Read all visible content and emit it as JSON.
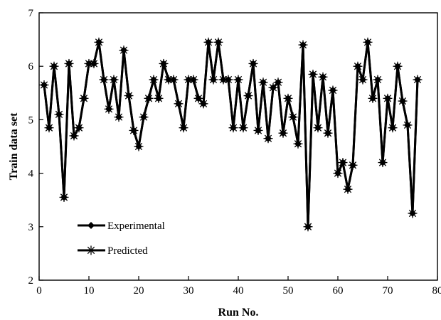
{
  "chart_data": {
    "type": "line",
    "xlabel": "Run No.",
    "ylabel": "Train data set",
    "xlim": [
      0,
      80
    ],
    "ylim": [
      2,
      7
    ],
    "xticks": [
      0,
      10,
      20,
      30,
      40,
      50,
      60,
      70,
      80
    ],
    "yticks": [
      2,
      3,
      4,
      5,
      6,
      7
    ],
    "grid": false,
    "legend_position": "lower-left",
    "x": [
      1,
      2,
      3,
      4,
      5,
      6,
      7,
      8,
      9,
      10,
      11,
      12,
      13,
      14,
      15,
      16,
      17,
      18,
      19,
      20,
      21,
      22,
      23,
      24,
      25,
      26,
      27,
      28,
      29,
      30,
      31,
      32,
      33,
      34,
      35,
      36,
      37,
      38,
      39,
      40,
      41,
      42,
      43,
      44,
      45,
      46,
      47,
      48,
      49,
      50,
      51,
      52,
      53,
      54,
      55,
      56,
      57,
      58,
      59,
      60,
      61,
      62,
      63,
      64,
      65,
      66,
      67,
      68,
      69,
      70,
      71,
      72,
      73,
      74,
      75,
      76
    ],
    "series": [
      {
        "name": "Experimental",
        "marker": "diamond",
        "values": [
          5.65,
          4.85,
          6.0,
          5.1,
          3.55,
          6.05,
          4.7,
          4.85,
          5.4,
          6.05,
          6.05,
          6.45,
          5.75,
          5.2,
          5.75,
          5.05,
          6.3,
          5.45,
          4.8,
          4.5,
          5.05,
          5.4,
          5.75,
          5.4,
          6.05,
          5.75,
          5.75,
          5.3,
          4.85,
          5.75,
          5.75,
          5.4,
          5.3,
          6.45,
          5.75,
          6.45,
          5.75,
          5.75,
          4.85,
          5.75,
          4.85,
          5.45,
          6.05,
          4.8,
          5.7,
          4.65,
          5.6,
          5.7,
          4.75,
          5.4,
          5.05,
          4.55,
          6.4,
          3.0,
          5.85,
          4.85,
          5.8,
          4.75,
          5.55,
          4.0,
          4.2,
          3.7,
          4.15,
          6.0,
          5.75,
          6.45,
          5.4,
          5.75,
          4.2,
          5.4,
          4.85,
          6.0,
          5.35,
          4.9,
          3.25,
          5.75
        ]
      },
      {
        "name": "Predicted",
        "marker": "asterisk",
        "values": [
          5.65,
          4.85,
          6.0,
          5.1,
          3.55,
          6.05,
          4.7,
          4.85,
          5.4,
          6.05,
          6.05,
          6.45,
          5.75,
          5.2,
          5.75,
          5.05,
          6.3,
          5.45,
          4.8,
          4.5,
          5.05,
          5.4,
          5.75,
          5.4,
          6.05,
          5.75,
          5.75,
          5.3,
          4.85,
          5.75,
          5.75,
          5.4,
          5.3,
          6.45,
          5.75,
          6.45,
          5.75,
          5.75,
          4.85,
          5.75,
          4.85,
          5.45,
          6.05,
          4.8,
          5.7,
          4.65,
          5.6,
          5.7,
          4.75,
          5.4,
          5.05,
          4.55,
          6.4,
          3.0,
          5.85,
          4.85,
          5.8,
          4.75,
          5.55,
          4.0,
          4.2,
          3.7,
          4.15,
          6.0,
          5.75,
          6.45,
          5.4,
          5.75,
          4.2,
          5.4,
          4.85,
          6.0,
          5.35,
          4.9,
          3.25,
          5.75
        ]
      }
    ]
  }
}
